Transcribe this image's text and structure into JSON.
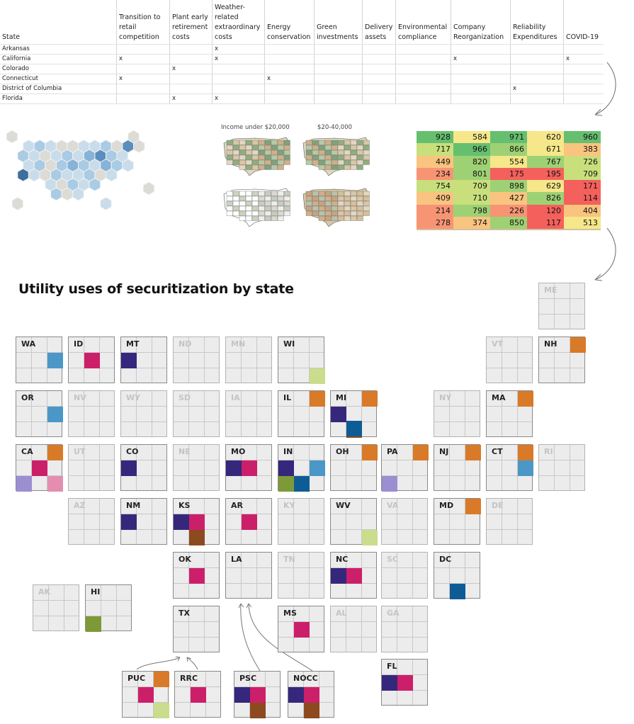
{
  "table": {
    "headers": [
      "State",
      "Transition to retail competition",
      "Plant early retirement costs",
      "Weather-related extraordinary costs",
      "Energy conservation",
      "Green investments",
      "Delivery assets",
      "Environmental compliance",
      "Company Reorganization",
      "Reliability Expenditures",
      "COVID-19"
    ],
    "rows": [
      [
        "Arkansas",
        "",
        "",
        "x",
        "",
        "",
        "",
        "",
        "",
        "",
        ""
      ],
      [
        "California",
        "x",
        "",
        "x",
        "",
        "",
        "",
        "",
        "x",
        "",
        "x"
      ],
      [
        "Colorado",
        "",
        "x",
        "",
        "",
        "",
        "",
        "",
        "",
        "",
        ""
      ],
      [
        "Connecticut",
        "x",
        "",
        "",
        "x",
        "",
        "",
        "",
        "",
        "",
        ""
      ],
      [
        "District of Columbia",
        "",
        "",
        "",
        "",
        "",
        "",
        "",
        "",
        "x",
        ""
      ],
      [
        "Florida",
        "",
        "x",
        "x",
        "",
        "",
        "",
        "",
        "",
        "",
        ""
      ]
    ]
  },
  "maps": {
    "label_left": "Income under $20,000",
    "label_right": "$20-40,000"
  },
  "value_grid": {
    "rows": [
      [
        928,
        584,
        971,
        620,
        960
      ],
      [
        717,
        966,
        866,
        671,
        383
      ],
      [
        449,
        820,
        554,
        767,
        726
      ],
      [
        234,
        801,
        175,
        195,
        709
      ],
      [
        754,
        709,
        898,
        629,
        171
      ],
      [
        409,
        710,
        427,
        826,
        114
      ],
      [
        214,
        798,
        226,
        120,
        404
      ],
      [
        278,
        374,
        850,
        117,
        513
      ]
    ],
    "colors": {
      "very_low": "#f4605c",
      "low": "#f79474",
      "mid_low": "#f9c47f",
      "mid": "#f5e78a",
      "mid_high": "#c8df7c",
      "high": "#9ed174",
      "very_high": "#66bf6f"
    }
  },
  "title": "Utility uses of securitization by state",
  "category_colors": {
    "c1": "#d97a28",
    "c2": "#4a97c8",
    "c3": "#cc1f6a",
    "c4": "#35287c",
    "c5": "#c9dd8c",
    "c6": "#8c4a1e",
    "c7": "#0e5c96",
    "c8": "#7d9a38",
    "c9": "#9b8fd2",
    "c10": "#e38eb0"
  },
  "tiles": [
    {
      "label": "ME",
      "active": false,
      "cells": []
    },
    {
      "label": "WA",
      "active": true,
      "cells": [
        [
          1,
          2,
          "c2"
        ]
      ]
    },
    {
      "label": "ID",
      "active": true,
      "cells": [
        [
          1,
          1,
          "c3"
        ]
      ]
    },
    {
      "label": "MT",
      "active": true,
      "cells": [
        [
          1,
          0,
          "c4"
        ]
      ]
    },
    {
      "label": "ND",
      "active": false,
      "cells": []
    },
    {
      "label": "MN",
      "active": false,
      "cells": []
    },
    {
      "label": "WI",
      "active": true,
      "cells": [
        [
          2,
          2,
          "c5"
        ]
      ]
    },
    {
      "label": "VT",
      "active": false,
      "cells": []
    },
    {
      "label": "NH",
      "active": true,
      "cells": [
        [
          0,
          2,
          "c1"
        ]
      ]
    },
    {
      "label": "OR",
      "active": true,
      "cells": [
        [
          1,
          2,
          "c2"
        ]
      ]
    },
    {
      "label": "NV",
      "active": false,
      "cells": []
    },
    {
      "label": "WY",
      "active": false,
      "cells": []
    },
    {
      "label": "SD",
      "active": false,
      "cells": []
    },
    {
      "label": "IA",
      "active": false,
      "cells": []
    },
    {
      "label": "IL",
      "active": true,
      "cells": [
        [
          0,
          2,
          "c1"
        ]
      ]
    },
    {
      "label": "MI",
      "active": true,
      "cells": [
        [
          0,
          2,
          "c1"
        ],
        [
          1,
          0,
          "c4"
        ],
        [
          2,
          1,
          "c6"
        ],
        [
          3,
          1,
          "c7"
        ]
      ]
    },
    {
      "label": "NY",
      "active": false,
      "cells": []
    },
    {
      "label": "MA",
      "active": true,
      "cells": [
        [
          0,
          2,
          "c1"
        ]
      ]
    },
    {
      "label": "CA",
      "active": true,
      "cells": [
        [
          0,
          2,
          "c1"
        ],
        [
          1,
          1,
          "c3"
        ],
        [
          2,
          0,
          "c9"
        ],
        [
          2,
          2,
          "c10"
        ]
      ]
    },
    {
      "label": "UT",
      "active": false,
      "cells": []
    },
    {
      "label": "CO",
      "active": true,
      "cells": [
        [
          1,
          0,
          "c4"
        ]
      ]
    },
    {
      "label": "NE",
      "active": false,
      "cells": []
    },
    {
      "label": "MO",
      "active": true,
      "cells": [
        [
          1,
          0,
          "c4"
        ],
        [
          1,
          1,
          "c3"
        ]
      ]
    },
    {
      "label": "IN",
      "active": true,
      "cells": [
        [
          1,
          0,
          "c4"
        ],
        [
          1,
          2,
          "c2"
        ],
        [
          2,
          0,
          "c8"
        ],
        [
          2,
          1,
          "c7"
        ]
      ]
    },
    {
      "label": "OH",
      "active": true,
      "cells": [
        [
          0,
          2,
          "c1"
        ]
      ]
    },
    {
      "label": "PA",
      "active": true,
      "cells": [
        [
          0,
          2,
          "c1"
        ],
        [
          2,
          0,
          "c9"
        ]
      ]
    },
    {
      "label": "NJ",
      "active": true,
      "cells": [
        [
          0,
          2,
          "c1"
        ]
      ]
    },
    {
      "label": "CT",
      "active": true,
      "cells": [
        [
          0,
          2,
          "c1"
        ],
        [
          1,
          2,
          "c2"
        ]
      ]
    },
    {
      "label": "RI",
      "active": false,
      "cells": []
    },
    {
      "label": "AZ",
      "active": false,
      "cells": []
    },
    {
      "label": "NM",
      "active": true,
      "cells": [
        [
          1,
          0,
          "c4"
        ]
      ]
    },
    {
      "label": "KS",
      "active": true,
      "cells": [
        [
          1,
          0,
          "c4"
        ],
        [
          1,
          1,
          "c3"
        ],
        [
          2,
          1,
          "c6"
        ]
      ]
    },
    {
      "label": "AR",
      "active": true,
      "cells": [
        [
          1,
          1,
          "c3"
        ]
      ]
    },
    {
      "label": "KY",
      "active": false,
      "cells": []
    },
    {
      "label": "WV",
      "active": true,
      "cells": [
        [
          2,
          2,
          "c5"
        ]
      ]
    },
    {
      "label": "VA",
      "active": false,
      "cells": []
    },
    {
      "label": "MD",
      "active": true,
      "cells": [
        [
          0,
          2,
          "c1"
        ]
      ]
    },
    {
      "label": "DE",
      "active": false,
      "cells": []
    },
    {
      "label": "OK",
      "active": true,
      "cells": [
        [
          1,
          1,
          "c3"
        ]
      ]
    },
    {
      "label": "LA",
      "active": true,
      "cells": []
    },
    {
      "label": "TN",
      "active": false,
      "cells": []
    },
    {
      "label": "NC",
      "active": true,
      "cells": [
        [
          1,
          0,
          "c4"
        ],
        [
          1,
          1,
          "c3"
        ]
      ]
    },
    {
      "label": "SC",
      "active": false,
      "cells": []
    },
    {
      "label": "DC",
      "active": true,
      "cells": [
        [
          2,
          1,
          "c7"
        ]
      ]
    },
    {
      "label": "AK",
      "active": false,
      "cells": []
    },
    {
      "label": "HI",
      "active": true,
      "cells": [
        [
          2,
          0,
          "c8"
        ]
      ]
    },
    {
      "label": "TX",
      "active": true,
      "cells": []
    },
    {
      "label": "MS",
      "active": true,
      "cells": [
        [
          1,
          1,
          "c3"
        ]
      ]
    },
    {
      "label": "AL",
      "active": false,
      "cells": []
    },
    {
      "label": "GA",
      "active": false,
      "cells": []
    },
    {
      "label": "FL",
      "active": true,
      "cells": [
        [
          1,
          0,
          "c4"
        ],
        [
          1,
          1,
          "c3"
        ]
      ]
    },
    {
      "label": "PUC",
      "active": true,
      "cells": [
        [
          0,
          2,
          "c1"
        ],
        [
          1,
          1,
          "c3"
        ],
        [
          2,
          2,
          "c5"
        ]
      ]
    },
    {
      "label": "RRC",
      "active": true,
      "cells": [
        [
          1,
          1,
          "c3"
        ]
      ]
    },
    {
      "label": "PSC",
      "active": true,
      "cells": [
        [
          1,
          0,
          "c4"
        ],
        [
          1,
          1,
          "c3"
        ],
        [
          2,
          1,
          "c6"
        ]
      ]
    },
    {
      "label": "NOCC",
      "active": true,
      "cells": [
        [
          1,
          0,
          "c4"
        ],
        [
          1,
          1,
          "c3"
        ],
        [
          2,
          1,
          "c6"
        ]
      ]
    }
  ]
}
